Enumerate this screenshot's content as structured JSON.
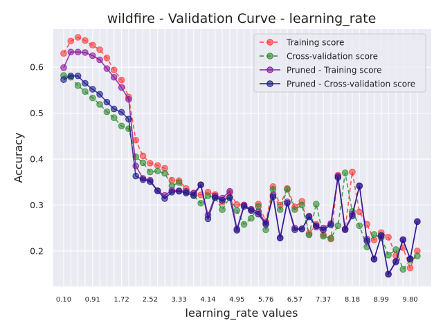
{
  "chart_data": {
    "type": "line",
    "title": "wildfire - Validation Curve - learning_rate",
    "xlabel": "learning_rate values",
    "ylabel": "Accuracy",
    "xlim": [
      -0.19,
      10.39
    ],
    "ylim": [
      0.123,
      0.683
    ],
    "x_ticks": [
      0.1,
      0.91,
      1.72,
      2.52,
      3.33,
      4.14,
      4.95,
      5.76,
      6.57,
      7.37,
      8.18,
      8.99,
      9.8
    ],
    "x_tick_labels": [
      "0.10",
      "0.91",
      "1.72",
      "2.52",
      "3.33",
      "4.14",
      "4.95",
      "5.76",
      "6.57",
      "7.37",
      "8.18",
      "8.99",
      "9.80"
    ],
    "y_ticks": [
      0.2,
      0.3,
      0.4,
      0.5,
      0.6
    ],
    "y_tick_labels": [
      "0.2",
      "0.3",
      "0.4",
      "0.5",
      "0.6"
    ],
    "grid": true,
    "legend_position": "top-right",
    "x": [
      0.1,
      0.3,
      0.5,
      0.7,
      0.91,
      1.11,
      1.31,
      1.51,
      1.72,
      1.92,
      2.12,
      2.32,
      2.52,
      2.73,
      2.93,
      3.13,
      3.33,
      3.53,
      3.74,
      3.94,
      4.14,
      4.34,
      4.54,
      4.75,
      4.95,
      5.15,
      5.35,
      5.55,
      5.76,
      5.96,
      6.16,
      6.36,
      6.57,
      6.77,
      6.97,
      7.17,
      7.37,
      7.58,
      7.78,
      7.98,
      8.18,
      8.38,
      8.59,
      8.79,
      8.99,
      9.19,
      9.4,
      9.6,
      9.8,
      10.0
    ],
    "series": [
      {
        "name": "Training score",
        "color": "#ff3b3b",
        "style": "dashed",
        "values": [
          0.63,
          0.657,
          0.665,
          0.658,
          0.648,
          0.638,
          0.62,
          0.594,
          0.572,
          0.535,
          0.441,
          0.407,
          0.391,
          0.386,
          0.38,
          0.354,
          0.353,
          0.336,
          0.326,
          0.322,
          0.328,
          0.323,
          0.306,
          0.327,
          0.301,
          0.3,
          0.29,
          0.302,
          0.264,
          0.34,
          0.3,
          0.336,
          0.296,
          0.308,
          0.238,
          0.258,
          0.235,
          0.226,
          0.365,
          0.248,
          0.372,
          0.285,
          0.258,
          0.224,
          0.24,
          0.23,
          0.19,
          0.207,
          0.163,
          0.2
        ]
      },
      {
        "name": "Cross-validation score",
        "color": "#2e8b2e",
        "style": "dashed",
        "values": [
          0.582,
          0.578,
          0.56,
          0.547,
          0.533,
          0.519,
          0.503,
          0.49,
          0.472,
          0.466,
          0.405,
          0.392,
          0.372,
          0.374,
          0.369,
          0.342,
          0.349,
          0.328,
          0.32,
          0.304,
          0.32,
          0.316,
          0.29,
          0.316,
          0.288,
          0.258,
          0.271,
          0.297,
          0.246,
          0.334,
          0.29,
          0.334,
          0.29,
          0.3,
          0.235,
          0.302,
          0.232,
          0.228,
          0.255,
          0.37,
          0.286,
          0.255,
          0.209,
          0.236,
          0.229,
          0.191,
          0.203,
          0.16,
          0.18,
          0.189
        ]
      },
      {
        "name": "Pruned - Training score",
        "color": "#8b1a9b",
        "style": "solid",
        "values": [
          0.599,
          0.633,
          0.633,
          0.632,
          0.625,
          0.616,
          0.597,
          0.578,
          0.556,
          0.53,
          0.385,
          0.358,
          0.354,
          0.331,
          0.321,
          0.332,
          0.331,
          0.33,
          0.326,
          0.344,
          0.278,
          0.32,
          0.315,
          0.33,
          0.248,
          0.3,
          0.291,
          0.285,
          0.261,
          0.322,
          0.229,
          0.307,
          0.25,
          0.248,
          0.276,
          0.252,
          0.25,
          0.26,
          0.363,
          0.248,
          0.28,
          0.341,
          0.226,
          0.183,
          0.232,
          0.15,
          0.178,
          0.225,
          0.183,
          0.264
        ]
      },
      {
        "name": "Pruned - Cross-validation score",
        "color": "#1a1a8c",
        "style": "solid",
        "values": [
          0.573,
          0.581,
          0.581,
          0.565,
          0.552,
          0.541,
          0.524,
          0.509,
          0.502,
          0.487,
          0.363,
          0.355,
          0.351,
          0.331,
          0.314,
          0.328,
          0.33,
          0.326,
          0.321,
          0.344,
          0.27,
          0.316,
          0.31,
          0.316,
          0.245,
          0.297,
          0.288,
          0.28,
          0.258,
          0.318,
          0.228,
          0.304,
          0.246,
          0.248,
          0.274,
          0.255,
          0.246,
          0.257,
          0.36,
          0.246,
          0.276,
          0.342,
          0.222,
          0.182,
          0.234,
          0.149,
          0.176,
          0.224,
          0.183,
          0.264
        ]
      }
    ]
  }
}
